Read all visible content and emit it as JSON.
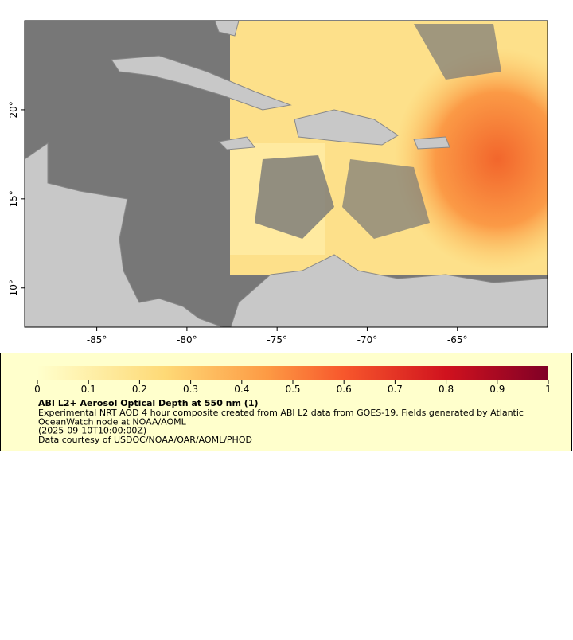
{
  "map": {
    "lon_range": [
      -89,
      -60
    ],
    "lat_range": [
      7.8,
      25
    ],
    "lon_ticks": [
      {
        "value": -85,
        "label": "-85°"
      },
      {
        "value": -80,
        "label": "-80°"
      },
      {
        "value": -75,
        "label": "-75°"
      },
      {
        "value": -70,
        "label": "-70°"
      },
      {
        "value": -65,
        "label": "-65°"
      }
    ],
    "lat_ticks": [
      {
        "value": 10,
        "label": "10°"
      },
      {
        "value": 15,
        "label": "15°"
      },
      {
        "value": 20,
        "label": "20°"
      }
    ]
  },
  "legend": {
    "colorbar_range": [
      0,
      1
    ],
    "colorbar_ticks": [
      0,
      0.1,
      0.2,
      0.3,
      0.4,
      0.5,
      0.6,
      0.7,
      0.8,
      0.9,
      1
    ],
    "title": "ABI L2+ Aerosol Optical Depth at 550 nm (1)",
    "lines": [
      "Experimental NRT AOD 4 hour composite created from ABI L2 data from GOES-19. Fields generated by Atlantic",
      "OceanWatch node at NOAA/AOML",
      "(2025-09-10T10:00:00Z)",
      "Data courtesy of USDOC/NOAA/OAR/AOML/PHOD"
    ]
  }
}
